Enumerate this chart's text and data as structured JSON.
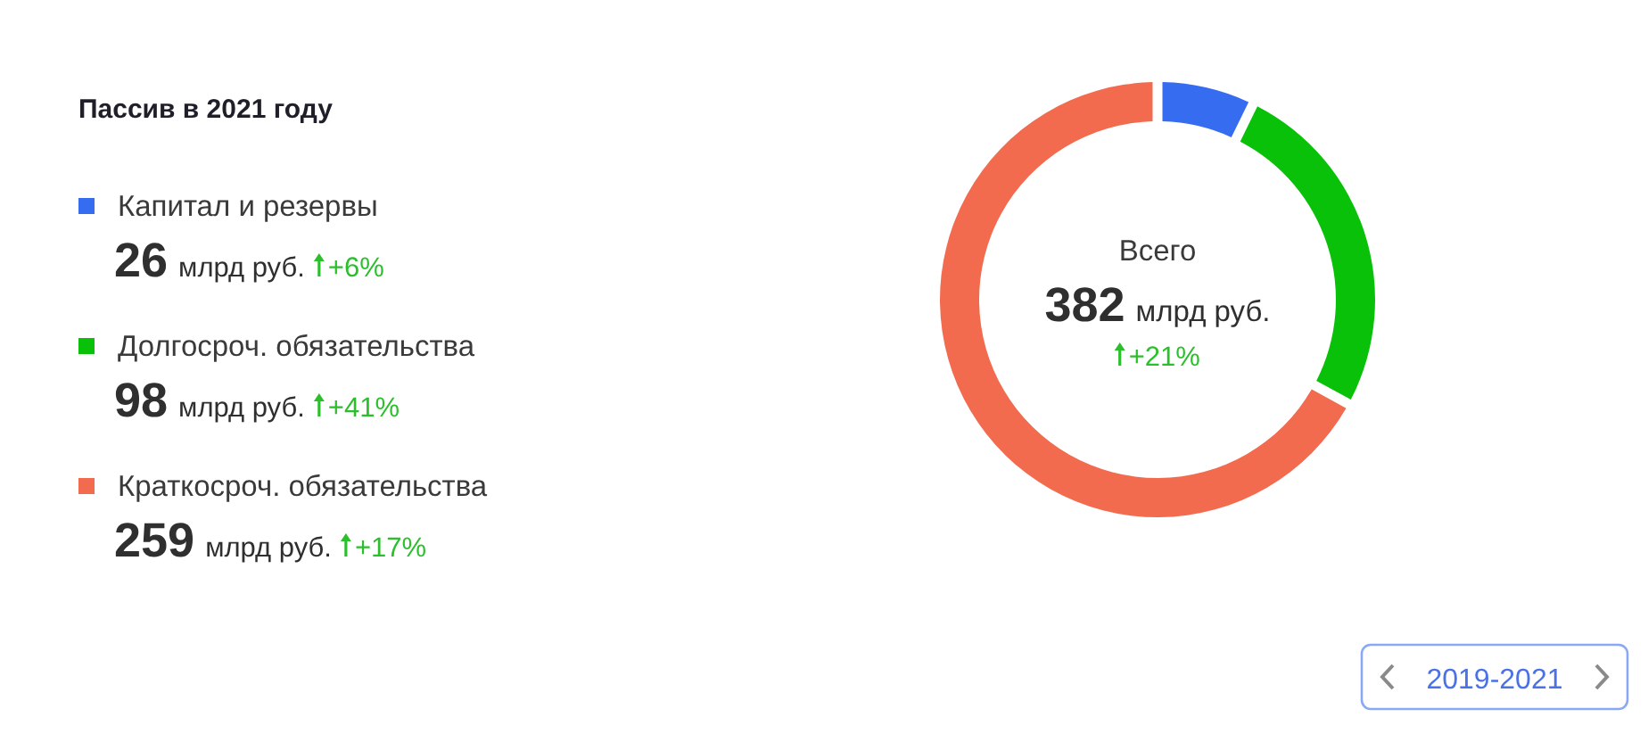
{
  "chart_data": {
    "type": "donut",
    "title": "Пассив в 2021 году",
    "categories": [
      "Капитал и резервы",
      "Долгосроч. обязательства",
      "Краткосроч. обязательства"
    ],
    "values": [
      26,
      98,
      259
    ],
    "colors": [
      "#356cf0",
      "#08c108",
      "#f26b4f"
    ],
    "value_labels": [
      "26 млрд руб.",
      "98 млрд руб.",
      "259 млрд руб."
    ],
    "annotations": [
      "+6%",
      "+41%",
      "+17%",
      "Всего",
      "382 млрд руб.",
      "+21%",
      "2019-2021"
    ],
    "legend": "left"
  }
}
